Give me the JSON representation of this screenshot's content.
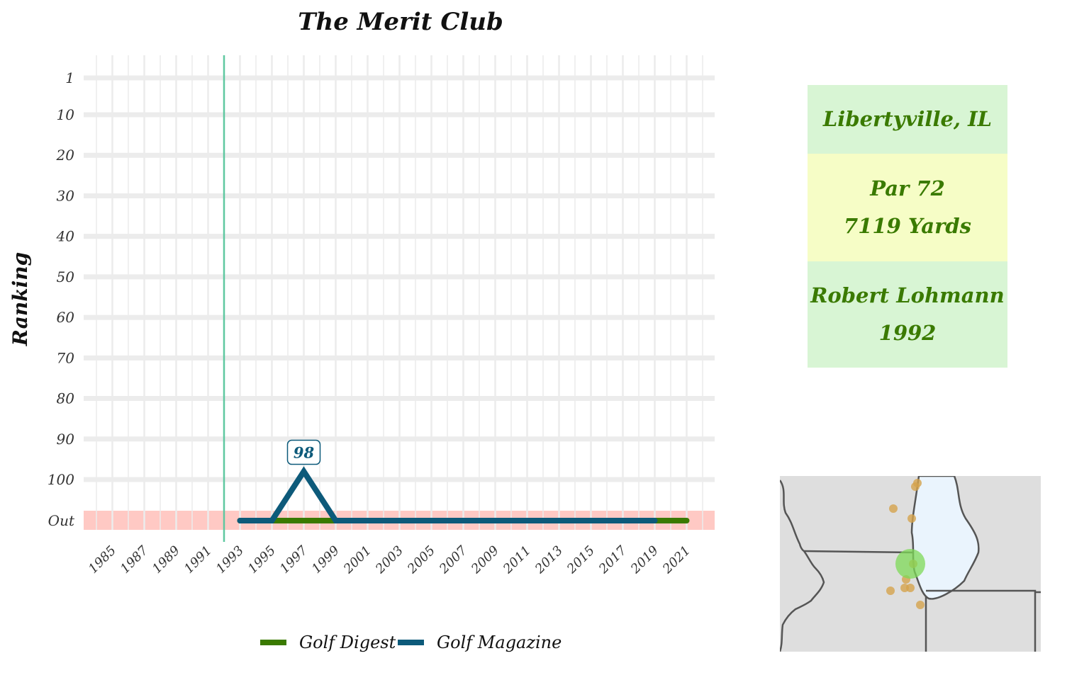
{
  "chart_data": {
    "type": "line",
    "title": "The Merit Club",
    "xlabel": "",
    "ylabel": "Ranking",
    "y_reversed": true,
    "y_ticks": [
      "1",
      "10",
      "20",
      "30",
      "40",
      "50",
      "60",
      "70",
      "80",
      "90",
      "100",
      "Out"
    ],
    "x_ticks": [
      "1985",
      "1987",
      "1989",
      "1991",
      "1993",
      "1995",
      "1997",
      "1999",
      "2001",
      "2003",
      "2005",
      "2007",
      "2009",
      "2011",
      "2013",
      "2015",
      "2017",
      "2019",
      "2021"
    ],
    "xlim": [
      1984,
      2022
    ],
    "out_band": "Out",
    "opened_year": 1992,
    "series": [
      {
        "name": "Golf Digest",
        "color": "#3a7a00",
        "points": [
          {
            "x": 1993,
            "y": "Out"
          },
          {
            "x": 2021,
            "y": "Out"
          }
        ]
      },
      {
        "name": "Golf Magazine",
        "color": "#0d5a7a",
        "points": [
          {
            "x": 1993,
            "y": "Out"
          },
          {
            "x": 1995,
            "y": "Out"
          },
          {
            "x": 1997,
            "y": 98
          },
          {
            "x": 1999,
            "y": "Out"
          },
          {
            "x": 2019,
            "y": "Out"
          }
        ]
      }
    ],
    "annotations": [
      {
        "series": "Golf Magazine",
        "x": 1997,
        "y": 98,
        "text": "98"
      }
    ],
    "legend": "bottom",
    "grid": true
  },
  "info": {
    "location": "Libertyville, IL",
    "par": "Par 72",
    "yards": "7119 Yards",
    "designer": "Robert Lohmann",
    "year": "1992"
  },
  "map": {
    "description_colors": {
      "land": "#dedede",
      "lake": "#eaf4fd",
      "other_courses": "#d4a24c",
      "this_course": "#7ed957"
    }
  }
}
